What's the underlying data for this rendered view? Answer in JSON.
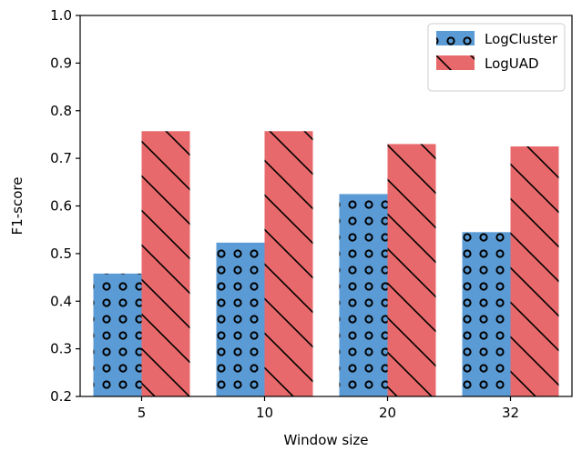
{
  "chart_data": {
    "type": "bar",
    "title": "",
    "xlabel": "Window size",
    "ylabel": "F1-score",
    "categories": [
      "5",
      "10",
      "20",
      "32"
    ],
    "series": [
      {
        "name": "LogCluster",
        "values": [
          0.458,
          0.523,
          0.625,
          0.545
        ],
        "color": "#5b9bd5",
        "pattern": "circles"
      },
      {
        "name": "LogUAD",
        "values": [
          0.757,
          0.757,
          0.73,
          0.725
        ],
        "color": "#e8696b",
        "pattern": "diagonal-hatch"
      }
    ],
    "ylim": [
      0.2,
      1.0
    ],
    "yticks": [
      "0.2",
      "0.3",
      "0.4",
      "0.5",
      "0.6",
      "0.7",
      "0.8",
      "0.9",
      "1.0"
    ],
    "grid": false,
    "legend_position": "top-right"
  }
}
